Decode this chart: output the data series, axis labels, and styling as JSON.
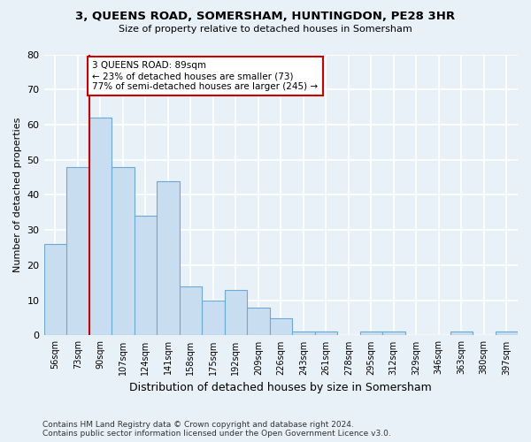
{
  "title_line1": "3, QUEENS ROAD, SOMERSHAM, HUNTINGDON, PE28 3HR",
  "title_line2": "Size of property relative to detached houses in Somersham",
  "xlabel": "Distribution of detached houses by size in Somersham",
  "ylabel": "Number of detached properties",
  "footnote": "Contains HM Land Registry data © Crown copyright and database right 2024.\nContains public sector information licensed under the Open Government Licence v3.0.",
  "bar_labels": [
    "56sqm",
    "73sqm",
    "90sqm",
    "107sqm",
    "124sqm",
    "141sqm",
    "158sqm",
    "175sqm",
    "192sqm",
    "209sqm",
    "226sqm",
    "243sqm",
    "261sqm",
    "278sqm",
    "295sqm",
    "312sqm",
    "329sqm",
    "346sqm",
    "363sqm",
    "380sqm",
    "397sqm"
  ],
  "bar_values": [
    26,
    48,
    62,
    48,
    34,
    44,
    14,
    10,
    13,
    8,
    5,
    1,
    1,
    0,
    1,
    1,
    0,
    0,
    1,
    0,
    1
  ],
  "bar_color": "#c9ddf0",
  "bar_edge_color": "#6aaad4",
  "background_color": "#e8f0f8",
  "grid_color": "#ffffff",
  "highlight_line_color": "#cc0000",
  "annotation_text": "3 QUEENS ROAD: 89sqm\n← 23% of detached houses are smaller (73)\n77% of semi-detached houses are larger (245) →",
  "annotation_box_color": "#ffffff",
  "annotation_box_edge_color": "#cc0000",
  "ylim": [
    0,
    80
  ],
  "yticks": [
    0,
    10,
    20,
    30,
    40,
    50,
    60,
    70,
    80
  ]
}
